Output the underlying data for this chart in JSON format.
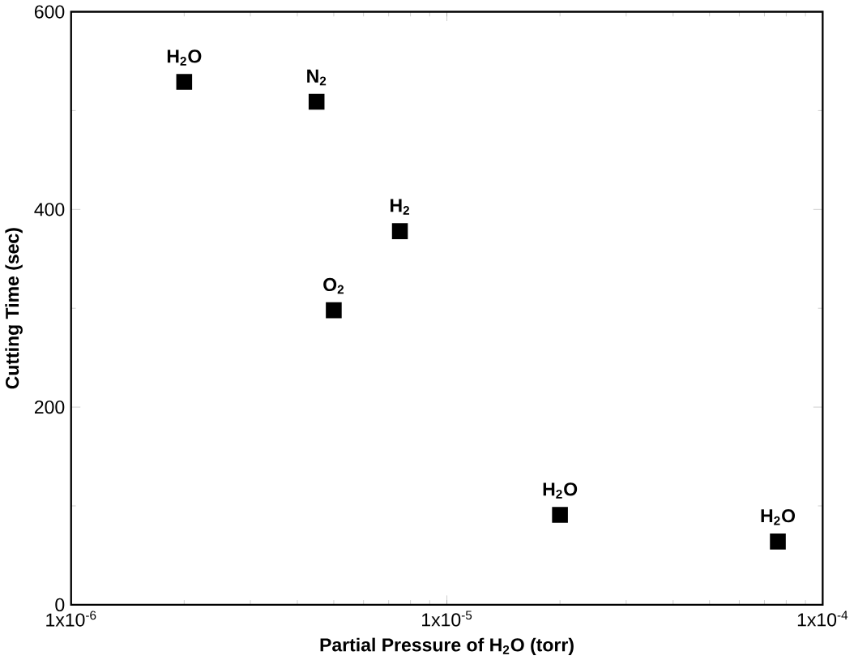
{
  "chart_data": {
    "type": "scatter",
    "xlabel": "Partial Pressure of H$_{2}$O (torr)",
    "ylabel": "Cutting Time (sec)",
    "log": "x",
    "xlim": [
      1e-06,
      0.0001
    ],
    "ylim": [
      0,
      600
    ],
    "xticks": [
      {
        "value": 1e-06,
        "label": "1x10$^{-6}$"
      },
      {
        "value": 1e-05,
        "label": "1x10$^{-5}$"
      },
      {
        "value": 0.0001,
        "label": "1x10$^{-4}$"
      }
    ],
    "yticks": [
      0,
      200,
      400,
      600
    ],
    "marker": "square",
    "x": [
      2e-06,
      4.5e-06,
      5e-06,
      7.5e-06,
      2e-05,
      7.6e-05
    ],
    "series": [
      {
        "color": "#000000",
        "values": [
          529,
          509,
          298,
          378,
          91,
          64
        ]
      }
    ],
    "annotations": [
      {
        "text": "H$_{2}$O",
        "x": 2e-06,
        "y": 529
      },
      {
        "text": "N$_{2}$",
        "x": 4.5e-06,
        "y": 509
      },
      {
        "text": "O$_{2}$",
        "x": 5e-06,
        "y": 298
      },
      {
        "text": "H$_{2}$",
        "x": 7.5e-06,
        "y": 378
      },
      {
        "text": "H$_{2}$O",
        "x": 2e-05,
        "y": 91
      },
      {
        "text": "H$_{2}$O",
        "x": 7.6e-05,
        "y": 64
      }
    ]
  }
}
